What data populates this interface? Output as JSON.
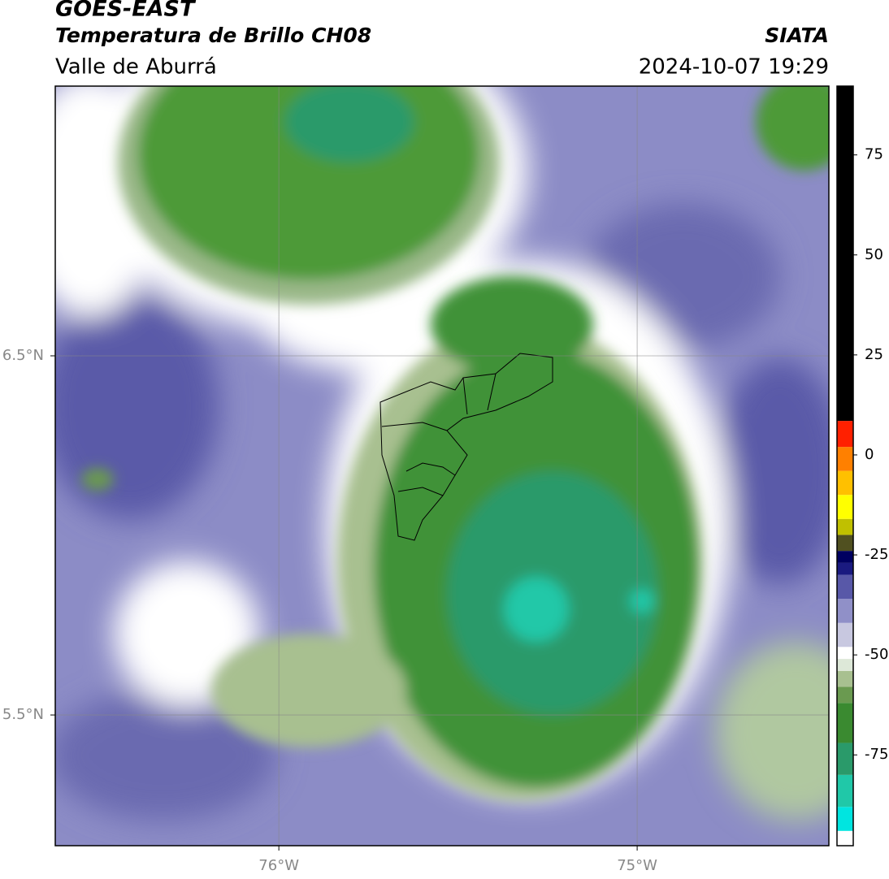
{
  "header": {
    "title": "GOES-EAST",
    "subtitle": "Temperatura de Brillo CH08",
    "region": "Valle de Aburrá",
    "source": "SIATA",
    "datetime": "2024-10-07 19:29"
  },
  "map": {
    "xlim": [
      -76.624,
      -74.465
    ],
    "ylim": [
      5.136,
      7.251
    ],
    "xticks": [
      {
        "value": -76,
        "label": "76°W"
      },
      {
        "value": -75,
        "label": "75°W"
      }
    ],
    "yticks": [
      {
        "value": 6.5,
        "label": "6.5°N"
      },
      {
        "value": 5.5,
        "label": "5.5°N"
      }
    ],
    "grid": true
  },
  "colorbar": {
    "lim": [
      -97.7,
      92.2
    ],
    "ticks": [
      -75,
      -50,
      -25,
      0,
      25,
      50,
      75
    ],
    "colormap": [
      {
        "from": -97.7,
        "color": "#ffffff"
      },
      {
        "from": -94,
        "color": "#00e5e0"
      },
      {
        "from": -88,
        "color": "#20c8a8"
      },
      {
        "from": -80,
        "color": "#2a9a6a"
      },
      {
        "from": -72,
        "color": "#3a8a30"
      },
      {
        "from": -62,
        "color": "#6a9a50"
      },
      {
        "from": -58,
        "color": "#a8c090"
      },
      {
        "from": -54,
        "color": "#dde8d8"
      },
      {
        "from": -51,
        "color": "#ffffff"
      },
      {
        "from": -48,
        "color": "#c8c8e0"
      },
      {
        "from": -42,
        "color": "#9090c8"
      },
      {
        "from": -36,
        "color": "#5858a8"
      },
      {
        "from": -30,
        "color": "#1a1a80"
      },
      {
        "from": -27,
        "color": "#000060"
      },
      {
        "from": -24,
        "color": "#505020"
      },
      {
        "from": -20,
        "color": "#c0c000"
      },
      {
        "from": -16,
        "color": "#ffff00"
      },
      {
        "from": -10,
        "color": "#ffc000"
      },
      {
        "from": -4,
        "color": "#ff8000"
      },
      {
        "from": 2,
        "color": "#ff2000"
      },
      {
        "from": 8.5,
        "color": "#000000"
      }
    ]
  }
}
